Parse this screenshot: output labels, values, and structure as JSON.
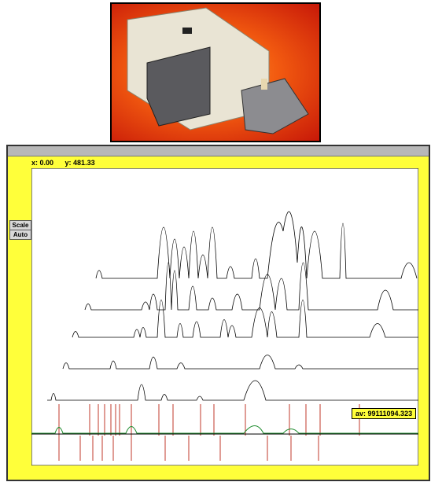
{
  "toolbar": {
    "x_readout": "x: 0.00",
    "y_readout": "y: 481.33"
  },
  "buttons": [
    "Scale",
    "Auto"
  ],
  "value_box": "av: 99111094.323"
}
